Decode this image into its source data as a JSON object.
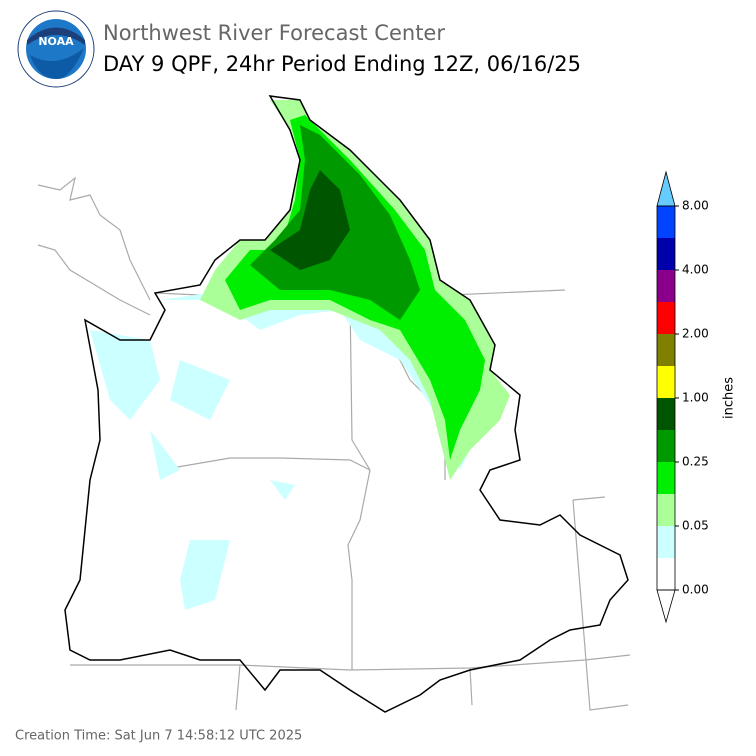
{
  "logo": "NOAA",
  "header": {
    "org": "Northwest River Forecast Center",
    "title": "DAY 9 QPF, 24hr Period Ending 12Z, 06/16/25"
  },
  "colorbar": {
    "labels": [
      "0.00",
      "0.05",
      "0.25",
      "1.00",
      "2.00",
      "4.00",
      "8.00"
    ],
    "unit": "inches",
    "colors": [
      "#ffffff",
      "#ccffff",
      "#aaff99",
      "#00ee00",
      "#009900",
      "#005500",
      "#ffff00",
      "#808000",
      "#ff0000",
      "#8b008b",
      "#0000aa",
      "#0044ff"
    ],
    "over_color": "#66ccff",
    "under_color": "#ffffff"
  },
  "footer": "Creation Time: Sat Jun 7 14:58:12 UTC 2025"
}
